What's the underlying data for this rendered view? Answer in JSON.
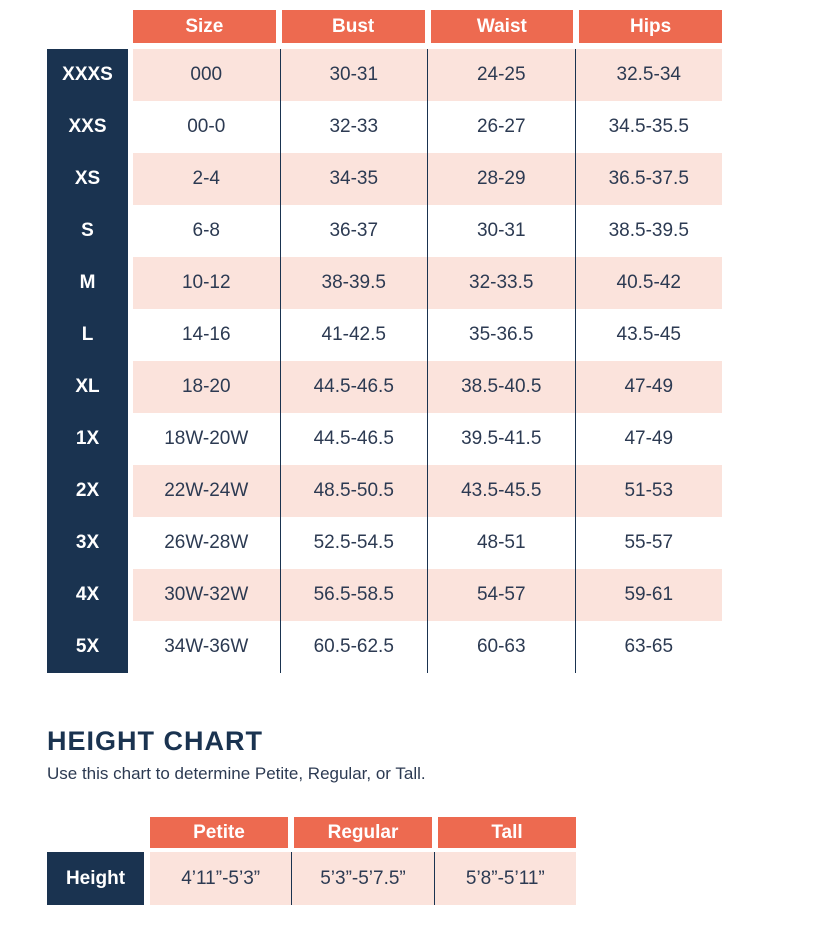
{
  "colors": {
    "orange": "#ED6A50",
    "navy": "#1A3350",
    "pink": "#FBE3DC",
    "ink": "#2C3A52"
  },
  "size_chart": {
    "columns": [
      "Size",
      "Bust",
      "Waist",
      "Hips"
    ],
    "rows": [
      {
        "label": "XXXS",
        "size": "000",
        "bust": "30-31",
        "waist": "24-25",
        "hips": "32.5-34"
      },
      {
        "label": "XXS",
        "size": "00-0",
        "bust": "32-33",
        "waist": "26-27",
        "hips": "34.5-35.5"
      },
      {
        "label": "XS",
        "size": "2-4",
        "bust": "34-35",
        "waist": "28-29",
        "hips": "36.5-37.5"
      },
      {
        "label": "S",
        "size": "6-8",
        "bust": "36-37",
        "waist": "30-31",
        "hips": "38.5-39.5"
      },
      {
        "label": "M",
        "size": "10-12",
        "bust": "38-39.5",
        "waist": "32-33.5",
        "hips": "40.5-42"
      },
      {
        "label": "L",
        "size": "14-16",
        "bust": "41-42.5",
        "waist": "35-36.5",
        "hips": "43.5-45"
      },
      {
        "label": "XL",
        "size": "18-20",
        "bust": "44.5-46.5",
        "waist": "38.5-40.5",
        "hips": "47-49"
      },
      {
        "label": "1X",
        "size": "18W-20W",
        "bust": "44.5-46.5",
        "waist": "39.5-41.5",
        "hips": "47-49"
      },
      {
        "label": "2X",
        "size": "22W-24W",
        "bust": "48.5-50.5",
        "waist": "43.5-45.5",
        "hips": "51-53"
      },
      {
        "label": "3X",
        "size": "26W-28W",
        "bust": "52.5-54.5",
        "waist": "48-51",
        "hips": "55-57"
      },
      {
        "label": "4X",
        "size": "30W-32W",
        "bust": "56.5-58.5",
        "waist": "54-57",
        "hips": "59-61"
      },
      {
        "label": "5X",
        "size": "34W-36W",
        "bust": "60.5-62.5",
        "waist": "60-63",
        "hips": "63-65"
      }
    ]
  },
  "height_chart": {
    "title": "HEIGHT CHART",
    "subtitle": "Use this chart to determine Petite, Regular, or Tall.",
    "columns": [
      "Petite",
      "Regular",
      "Tall"
    ],
    "row_label": "Height",
    "values": [
      "4’11”-5’3”",
      "5’3”-5’7.5”",
      "5’8”-5’11”"
    ]
  }
}
